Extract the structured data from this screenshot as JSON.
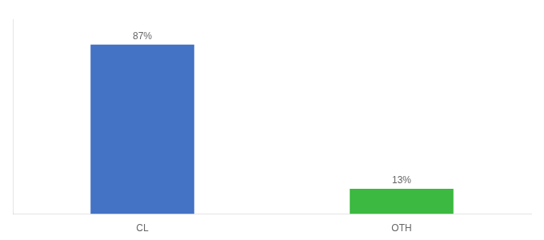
{
  "chart_data": {
    "type": "bar",
    "categories": [
      "CL",
      "OTH"
    ],
    "values": [
      87,
      13
    ],
    "value_labels": [
      "87%",
      "13%"
    ],
    "colors": [
      "#4472c4",
      "#3cb940"
    ],
    "ylim": [
      0,
      100
    ],
    "grid": false,
    "tick_labels": "x",
    "data_labels": true
  }
}
